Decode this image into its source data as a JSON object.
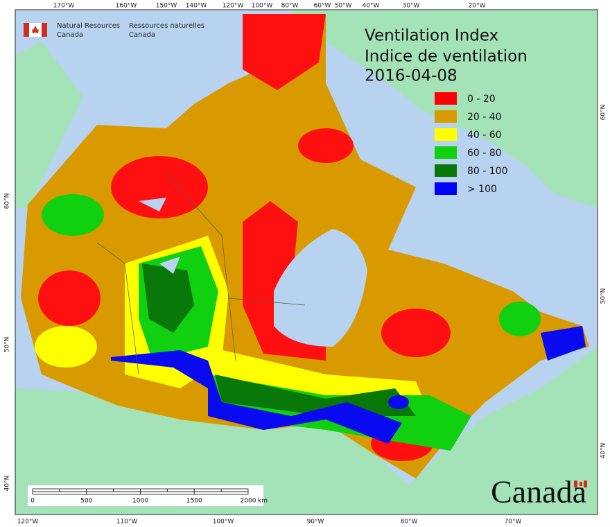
{
  "header": {
    "agency_en": [
      "Natural Resources",
      "Canada"
    ],
    "agency_fr": [
      "Ressources naturelles",
      "Canada"
    ]
  },
  "title": {
    "lines": [
      "Ventilation Index",
      "Indice de ventilation",
      "2016-04-08"
    ]
  },
  "legend": [
    {
      "label": "0 - 20",
      "color": "#ff0000"
    },
    {
      "label": "20 - 40",
      "color": "#d99a00"
    },
    {
      "label": "40 - 60",
      "color": "#ffff00"
    },
    {
      "label": "60 - 80",
      "color": "#10d010"
    },
    {
      "label": "80 - 100",
      "color": "#087808"
    },
    {
      "label": "> 100",
      "color": "#0000ff"
    }
  ],
  "graticule": {
    "top": [
      "170°W",
      "160°W",
      "150°W",
      "140°W",
      "120°W",
      "100°W",
      "80°W",
      "60°W",
      "50°W",
      "40°W",
      "30°W",
      "20°W"
    ],
    "bottom": [
      "120°W",
      "110°W",
      "100°W",
      "90°W",
      "80°W",
      "70°W"
    ],
    "left": [
      "60°N",
      "50°N",
      "40°N"
    ],
    "right": [
      "60°N",
      "50°N",
      "40°N"
    ]
  },
  "scale_bar": {
    "labels": [
      0,
      500,
      1000,
      1500,
      2000
    ],
    "unit": "km"
  },
  "wordmark": "Canada"
}
